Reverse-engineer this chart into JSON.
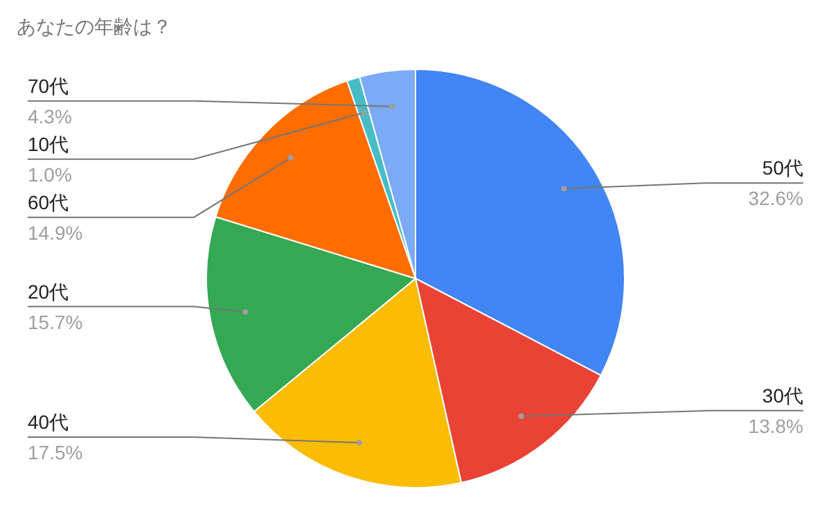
{
  "chart_data": {
    "type": "pie",
    "title": "あなたの年齢は？",
    "categories": [
      "50代",
      "30代",
      "40代",
      "20代",
      "60代",
      "10代",
      "70代"
    ],
    "values": [
      32.6,
      13.8,
      17.5,
      15.7,
      14.9,
      1.0,
      4.3
    ],
    "value_labels": [
      "32.6%",
      "13.8%",
      "17.5%",
      "15.7%",
      "14.9%",
      "1.0%",
      "4.3%"
    ],
    "colors": [
      "#4285f4",
      "#ea4335",
      "#fbbc04",
      "#34a853",
      "#ff6d01",
      "#46bdc6",
      "#7baaf7"
    ]
  }
}
